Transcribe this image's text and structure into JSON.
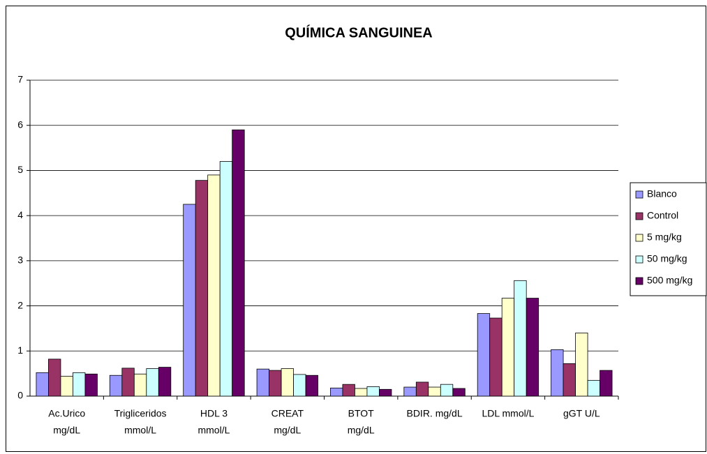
{
  "chart_data": {
    "type": "bar",
    "title": "QUÍMICA SANGUINEA",
    "categories": [
      [
        "Ac.Urico",
        "mg/dL"
      ],
      [
        "Trigliceridos",
        "mmol/L"
      ],
      [
        "HDL 3",
        "mmol/L"
      ],
      [
        "CREAT",
        "mg/dL"
      ],
      [
        "BTOT",
        "mg/dL"
      ],
      [
        "BDIR. mg/dL"
      ],
      [
        "LDL mmol/L"
      ],
      [
        "gGT U/L"
      ]
    ],
    "series": [
      {
        "name": "Blanco",
        "color": "#9999ff",
        "values": [
          0.52,
          0.46,
          4.25,
          0.6,
          0.18,
          0.2,
          1.83,
          1.03
        ]
      },
      {
        "name": "Control",
        "color": "#993366",
        "values": [
          0.82,
          0.62,
          4.78,
          0.57,
          0.26,
          0.31,
          1.73,
          0.72
        ]
      },
      {
        "name": "5 mg/kg",
        "color": "#ffffcc",
        "values": [
          0.44,
          0.49,
          4.9,
          0.61,
          0.17,
          0.2,
          2.17,
          1.4
        ]
      },
      {
        "name": "50 mg/kg",
        "color": "#ccffff",
        "values": [
          0.52,
          0.61,
          5.2,
          0.48,
          0.21,
          0.26,
          2.56,
          0.35
        ]
      },
      {
        "name": "500 mg/kg",
        "color": "#660066",
        "values": [
          0.49,
          0.64,
          5.9,
          0.46,
          0.15,
          0.17,
          2.17,
          0.57
        ]
      }
    ],
    "ylim": [
      0,
      7
    ],
    "yticks": [
      0,
      1,
      2,
      3,
      4,
      5,
      6,
      7
    ],
    "grid": true,
    "legend": "right"
  }
}
